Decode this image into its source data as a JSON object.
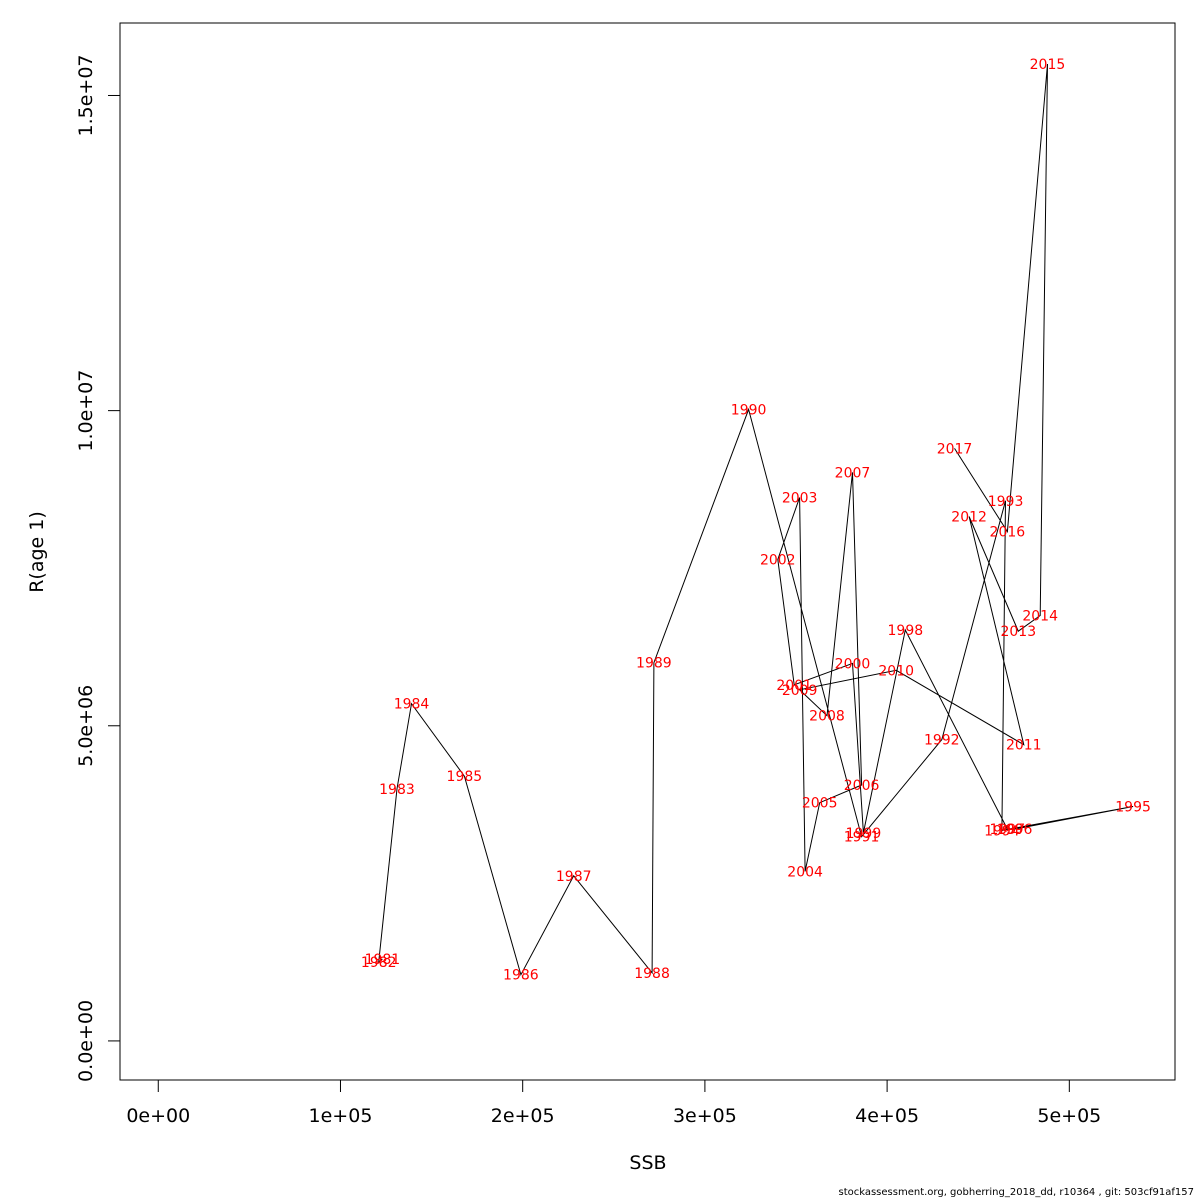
{
  "chart_data": {
    "type": "line",
    "title": "",
    "xlabel": "SSB",
    "ylabel": "R(age 1)",
    "xlim": [
      -21000,
      558000
    ],
    "ylim": [
      -620000,
      16150000
    ],
    "xticks": [
      {
        "value": 0,
        "label": "0e+00"
      },
      {
        "value": 100000,
        "label": "1e+05"
      },
      {
        "value": 200000,
        "label": "2e+05"
      },
      {
        "value": 300000,
        "label": "3e+05"
      },
      {
        "value": 400000,
        "label": "4e+05"
      },
      {
        "value": 500000,
        "label": "5e+05"
      }
    ],
    "yticks": [
      {
        "value": 0,
        "label": "0.0e+00"
      },
      {
        "value": 5000000,
        "label": "5.0e+06"
      },
      {
        "value": 10000000,
        "label": "1.0e+07"
      },
      {
        "value": 15000000,
        "label": "1.5e+07"
      }
    ],
    "grid": false,
    "legend": "none",
    "line_color": "#000000",
    "label_color": "#ff0000",
    "series": [
      {
        "points": [
          {
            "year": "1981",
            "x": 123000,
            "y": 1300000
          },
          {
            "year": "1982",
            "x": 121000,
            "y": 1250000
          },
          {
            "year": "1983",
            "x": 131000,
            "y": 4000000
          },
          {
            "year": "1984",
            "x": 139000,
            "y": 5350000
          },
          {
            "year": "1985",
            "x": 168000,
            "y": 4200000
          },
          {
            "year": "1986",
            "x": 199000,
            "y": 1050000
          },
          {
            "year": "1987",
            "x": 228000,
            "y": 2620000
          },
          {
            "year": "1988",
            "x": 271000,
            "y": 1080000
          },
          {
            "year": "1989",
            "x": 272000,
            "y": 6000000
          },
          {
            "year": "1990",
            "x": 324000,
            "y": 10020000
          },
          {
            "year": "1991",
            "x": 386000,
            "y": 3240000
          },
          {
            "year": "1992",
            "x": 430000,
            "y": 4780000
          },
          {
            "year": "1993",
            "x": 465000,
            "y": 8570000
          },
          {
            "year": "1994",
            "x": 463000,
            "y": 3340000
          },
          {
            "year": "1995",
            "x": 535000,
            "y": 3720000
          },
          {
            "year": "1996",
            "x": 470000,
            "y": 3360000
          },
          {
            "year": "1997",
            "x": 466000,
            "y": 3360000
          },
          {
            "year": "1998",
            "x": 410000,
            "y": 6520000
          },
          {
            "year": "1999",
            "x": 387000,
            "y": 3300000
          },
          {
            "year": "2000",
            "x": 381000,
            "y": 5990000
          },
          {
            "year": "2001",
            "x": 349000,
            "y": 5650000
          },
          {
            "year": "2002",
            "x": 340000,
            "y": 7640000
          },
          {
            "year": "2003",
            "x": 352000,
            "y": 8620000
          },
          {
            "year": "2004",
            "x": 355000,
            "y": 2690000
          },
          {
            "year": "2005",
            "x": 363000,
            "y": 3780000
          },
          {
            "year": "2006",
            "x": 386000,
            "y": 4060000
          },
          {
            "year": "2007",
            "x": 381000,
            "y": 9020000
          },
          {
            "year": "2008",
            "x": 367000,
            "y": 5160000
          },
          {
            "year": "2009",
            "x": 352000,
            "y": 5570000
          },
          {
            "year": "2010",
            "x": 405000,
            "y": 5880000
          },
          {
            "year": "2011",
            "x": 475000,
            "y": 4700000
          },
          {
            "year": "2012",
            "x": 445000,
            "y": 8320000
          },
          {
            "year": "2013",
            "x": 472000,
            "y": 6500000
          },
          {
            "year": "2014",
            "x": 484000,
            "y": 6750000
          },
          {
            "year": "2015",
            "x": 488000,
            "y": 15500000
          },
          {
            "year": "2016",
            "x": 466000,
            "y": 8080000
          },
          {
            "year": "2017",
            "x": 437000,
            "y": 9400000
          }
        ]
      }
    ]
  },
  "footer": "stockassessment.org, gobherring_2018_dd, r10364 , git: 503cf91af157"
}
